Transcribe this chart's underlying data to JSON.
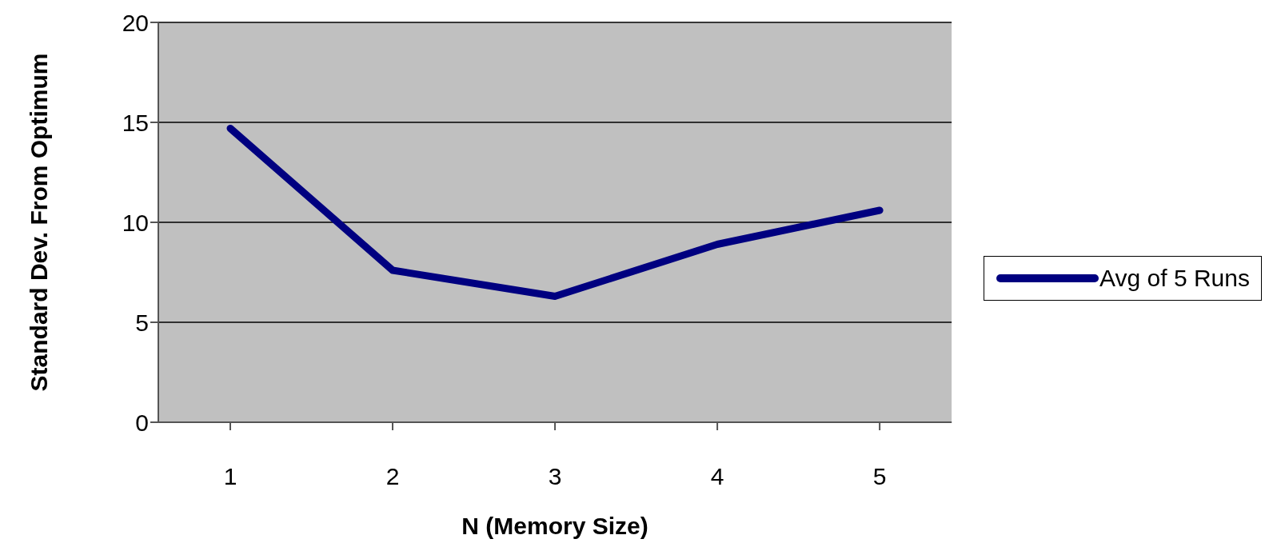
{
  "chart_data": {
    "type": "line",
    "xlabel": "N (Memory Size)",
    "ylabel": "Standard Dev. From Optimum",
    "categories": [
      "1",
      "2",
      "3",
      "4",
      "5"
    ],
    "series": [
      {
        "name": "Avg of 5 Runs",
        "color": "#000080",
        "values": [
          14.7,
          7.6,
          6.3,
          8.9,
          10.6
        ]
      }
    ],
    "ylim": [
      0,
      20
    ],
    "yticks": [
      0,
      5,
      10,
      15,
      20
    ],
    "grid": "y",
    "legend": "right",
    "marker": "none",
    "line_style": "solid"
  }
}
